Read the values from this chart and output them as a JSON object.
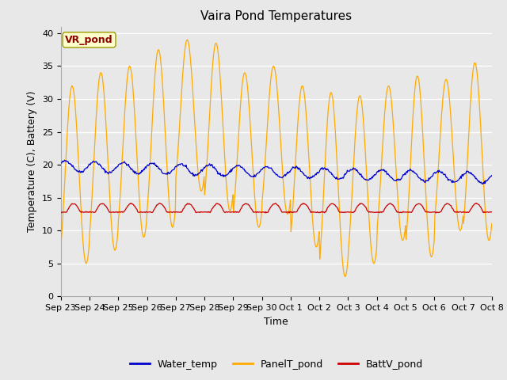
{
  "title": "Vaira Pond Temperatures",
  "xlabel": "Time",
  "ylabel": "Temperature (C), Battery (V)",
  "ylim": [
    0,
    41
  ],
  "yticks": [
    0,
    5,
    10,
    15,
    20,
    25,
    30,
    35,
    40
  ],
  "x_labels": [
    "Sep 23",
    "Sep 24",
    "Sep 25",
    "Sep 26",
    "Sep 27",
    "Sep 28",
    "Sep 29",
    "Sep 30",
    "Oct 1",
    "Oct 2",
    "Oct 3",
    "Oct 4",
    "Oct 5",
    "Oct 6",
    "Oct 7",
    "Oct 8"
  ],
  "water_color": "#0000cc",
  "panel_color": "#ffaa00",
  "batt_color": "#cc0000",
  "plot_bg_color": "#e8e8e8",
  "fig_bg_color": "#e8e8e8",
  "annotation_text": "VR_pond",
  "annotation_color": "#8b0000",
  "annotation_bg": "#ffffcc",
  "legend_labels": [
    "Water_temp",
    "PanelT_pond",
    "BattV_pond"
  ],
  "title_fontsize": 11,
  "axis_fontsize": 9,
  "tick_fontsize": 8,
  "legend_fontsize": 9
}
